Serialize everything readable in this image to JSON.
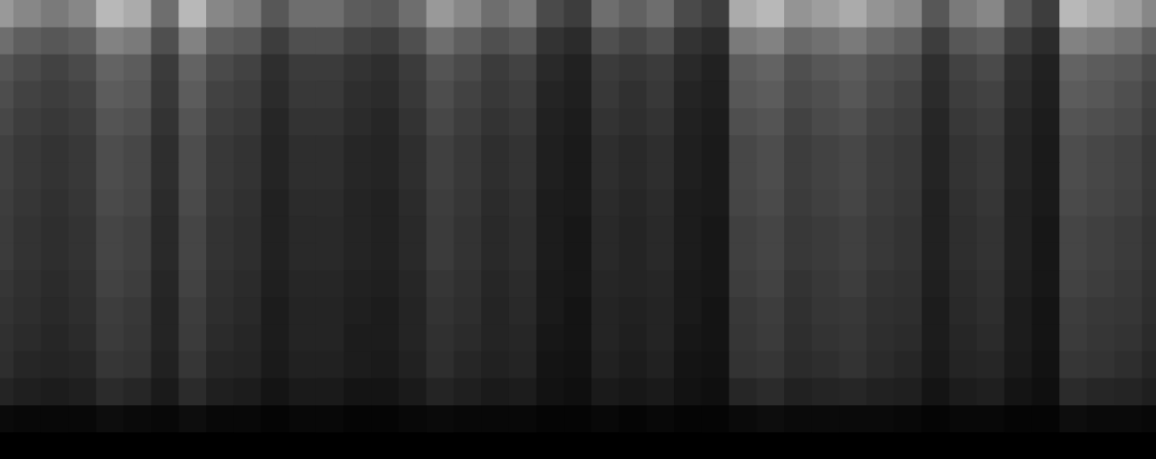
{
  "chart_data": {
    "type": "heatmap",
    "tick_labels": false,
    "color": "#ffffff",
    "color_range": [
      0,
      100
    ],
    "cells": [
      [
        60,
        53,
        48,
        53,
        72,
        67,
        43,
        72,
        53,
        48,
        34,
        43,
        43,
        36,
        34,
        43,
        60,
        53,
        43,
        48,
        29,
        24,
        43,
        38,
        43,
        29,
        24,
        67,
        72,
        58,
        62,
        67,
        58,
        53,
        34,
        48,
        53,
        34,
        24,
        72,
        67,
        62,
        53
      ],
      [
        43,
        37,
        34,
        37,
        51,
        48,
        31,
        51,
        37,
        34,
        24,
        31,
        31,
        26,
        24,
        31,
        43,
        37,
        31,
        34,
        20,
        17,
        31,
        27,
        31,
        20,
        17,
        48,
        51,
        41,
        44,
        48,
        41,
        37,
        24,
        34,
        37,
        24,
        17,
        51,
        48,
        44,
        37
      ],
      [
        33,
        29,
        26,
        29,
        39,
        36,
        23,
        39,
        29,
        26,
        18,
        23,
        23,
        20,
        18,
        23,
        33,
        29,
        23,
        26,
        16,
        13,
        23,
        21,
        23,
        16,
        13,
        36,
        39,
        31,
        34,
        36,
        31,
        29,
        18,
        26,
        29,
        18,
        13,
        39,
        36,
        34,
        29
      ],
      [
        30,
        26,
        24,
        26,
        36,
        34,
        22,
        36,
        26,
        24,
        17,
        22,
        22,
        18,
        17,
        22,
        30,
        26,
        22,
        24,
        14,
        12,
        22,
        19,
        22,
        14,
        12,
        34,
        36,
        29,
        31,
        34,
        29,
        26,
        17,
        24,
        26,
        17,
        12,
        36,
        34,
        31,
        26
      ],
      [
        28,
        24,
        22,
        24,
        33,
        31,
        20,
        33,
        24,
        22,
        15,
        20,
        20,
        17,
        15,
        20,
        28,
        24,
        20,
        22,
        13,
        11,
        20,
        18,
        20,
        13,
        11,
        31,
        33,
        26,
        29,
        31,
        26,
        24,
        15,
        22,
        24,
        15,
        11,
        33,
        31,
        29,
        24
      ],
      [
        25,
        22,
        20,
        22,
        30,
        28,
        18,
        30,
        22,
        20,
        14,
        18,
        18,
        15,
        14,
        18,
        25,
        22,
        18,
        20,
        12,
        10,
        18,
        16,
        18,
        12,
        10,
        28,
        30,
        24,
        26,
        28,
        24,
        22,
        14,
        20,
        22,
        14,
        10,
        30,
        28,
        26,
        22
      ],
      [
        25,
        22,
        20,
        22,
        30,
        28,
        18,
        30,
        22,
        20,
        14,
        18,
        18,
        15,
        14,
        18,
        25,
        22,
        18,
        20,
        12,
        10,
        18,
        16,
        18,
        12,
        10,
        28,
        30,
        24,
        26,
        28,
        24,
        22,
        14,
        20,
        22,
        14,
        10,
        30,
        28,
        26,
        22
      ],
      [
        24,
        21,
        19,
        21,
        29,
        27,
        17,
        29,
        21,
        19,
        13,
        17,
        17,
        14,
        13,
        17,
        24,
        21,
        17,
        19,
        11,
        10,
        17,
        15,
        17,
        11,
        10,
        27,
        29,
        23,
        25,
        27,
        23,
        21,
        13,
        19,
        21,
        13,
        10,
        29,
        27,
        25,
        21
      ],
      [
        23,
        20,
        18,
        20,
        27,
        25,
        16,
        27,
        20,
        18,
        13,
        16,
        16,
        14,
        13,
        16,
        23,
        20,
        16,
        18,
        11,
        9,
        16,
        14,
        16,
        11,
        9,
        25,
        27,
        22,
        23,
        25,
        22,
        20,
        13,
        18,
        20,
        13,
        9,
        27,
        25,
        23,
        20
      ],
      [
        23,
        20,
        18,
        20,
        27,
        25,
        16,
        27,
        20,
        18,
        13,
        16,
        16,
        14,
        13,
        16,
        23,
        20,
        16,
        18,
        11,
        9,
        16,
        14,
        16,
        11,
        9,
        25,
        27,
        22,
        23,
        25,
        22,
        20,
        13,
        18,
        20,
        13,
        9,
        27,
        25,
        23,
        20
      ],
      [
        21,
        19,
        17,
        19,
        26,
        24,
        15,
        26,
        19,
        17,
        12,
        15,
        15,
        13,
        12,
        15,
        21,
        19,
        15,
        17,
        10,
        9,
        15,
        14,
        15,
        10,
        9,
        24,
        26,
        20,
        22,
        24,
        20,
        19,
        12,
        17,
        19,
        12,
        9,
        26,
        24,
        22,
        19
      ],
      [
        20,
        18,
        16,
        18,
        24,
        22,
        14,
        24,
        18,
        16,
        11,
        14,
        14,
        12,
        11,
        14,
        20,
        18,
        14,
        16,
        10,
        8,
        14,
        13,
        14,
        10,
        8,
        22,
        24,
        19,
        21,
        22,
        19,
        18,
        11,
        16,
        18,
        11,
        8,
        24,
        22,
        21,
        18
      ],
      [
        19,
        17,
        15,
        17,
        23,
        21,
        14,
        23,
        17,
        15,
        11,
        14,
        14,
        11,
        11,
        14,
        19,
        17,
        14,
        15,
        9,
        8,
        14,
        12,
        14,
        9,
        8,
        21,
        23,
        18,
        20,
        21,
        18,
        17,
        11,
        15,
        17,
        11,
        8,
        23,
        21,
        20,
        17
      ],
      [
        18,
        15,
        14,
        15,
        21,
        20,
        13,
        21,
        15,
        14,
        10,
        13,
        13,
        11,
        10,
        13,
        18,
        15,
        13,
        14,
        8,
        7,
        13,
        11,
        13,
        8,
        7,
        20,
        21,
        17,
        18,
        20,
        17,
        15,
        10,
        14,
        15,
        10,
        7,
        21,
        20,
        18,
        15
      ],
      [
        14,
        12,
        11,
        12,
        17,
        15,
        10,
        17,
        12,
        11,
        8,
        10,
        10,
        8,
        8,
        10,
        14,
        12,
        10,
        11,
        7,
        6,
        10,
        9,
        10,
        7,
        6,
        15,
        17,
        13,
        14,
        15,
        13,
        12,
        8,
        11,
        12,
        8,
        6,
        17,
        15,
        14,
        12
      ],
      [
        4,
        3,
        3,
        3,
        5,
        4,
        3,
        5,
        3,
        3,
        2,
        3,
        3,
        2,
        2,
        3,
        4,
        3,
        3,
        3,
        2,
        2,
        3,
        2,
        3,
        2,
        2,
        4,
        5,
        4,
        4,
        4,
        4,
        3,
        2,
        3,
        3,
        2,
        2,
        5,
        4,
        4,
        3
      ],
      [
        0,
        0,
        0,
        0,
        0,
        0,
        0,
        0,
        0,
        0,
        0,
        0,
        0,
        0,
        0,
        0,
        0,
        0,
        0,
        0,
        0,
        0,
        0,
        0,
        0,
        0,
        0,
        0,
        0,
        0,
        0,
        0,
        0,
        0,
        0,
        0,
        0,
        0,
        0,
        0,
        0,
        0,
        0
      ]
    ]
  }
}
